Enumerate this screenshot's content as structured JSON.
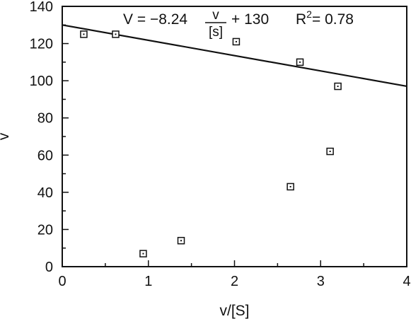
{
  "chart_data": {
    "type": "scatter",
    "xlabel": "v/[S]",
    "ylabel": "v",
    "xlim": [
      0,
      4
    ],
    "ylim": [
      0,
      140
    ],
    "x_ticks": [
      "0",
      "1",
      "2",
      "3",
      "4"
    ],
    "y_ticks": [
      "0",
      "20",
      "40",
      "60",
      "80",
      "100",
      "120",
      "140"
    ],
    "points": [
      {
        "x": 0.25,
        "y": 125
      },
      {
        "x": 0.62,
        "y": 125
      },
      {
        "x": 0.94,
        "y": 7
      },
      {
        "x": 1.38,
        "y": 14
      },
      {
        "x": 2.02,
        "y": 121
      },
      {
        "x": 2.65,
        "y": 43
      },
      {
        "x": 2.76,
        "y": 110
      },
      {
        "x": 3.11,
        "y": 62
      },
      {
        "x": 3.2,
        "y": 97
      }
    ],
    "fit_line": {
      "slope": -8.24,
      "intercept": 130
    },
    "annotation": {
      "lhs": "V = −8.24",
      "frac_num": "v",
      "frac_den": "[s]",
      "rhs": "+ 130",
      "r2_label": "R",
      "r2_sup": "2",
      "r2_value": "= 0.78"
    }
  }
}
